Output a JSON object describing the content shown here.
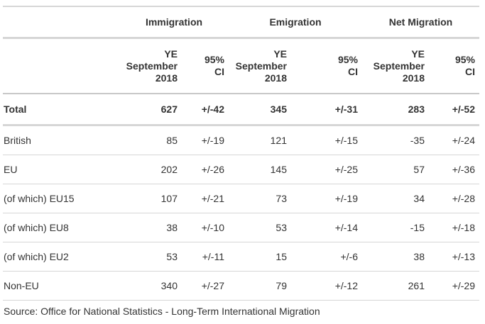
{
  "groups": [
    "Immigration",
    "Emigration",
    "Net Migration"
  ],
  "subheaders": {
    "period_line1": "YE",
    "period_line2": "September",
    "period_line3": "2018",
    "ci_line1": "95%",
    "ci_line2": "CI"
  },
  "rows": [
    {
      "label": "Total",
      "imm": "627",
      "imm_ci": "+/-42",
      "emi": "345",
      "emi_ci": "+/-31",
      "net": "283",
      "net_ci": "+/-52"
    },
    {
      "label": "British",
      "imm": "85",
      "imm_ci": "+/-19",
      "emi": "121",
      "emi_ci": "+/-15",
      "net": "-35",
      "net_ci": "+/-24"
    },
    {
      "label": "EU",
      "imm": "202",
      "imm_ci": "+/-26",
      "emi": "145",
      "emi_ci": "+/-25",
      "net": "57",
      "net_ci": "+/-36"
    },
    {
      "label": "(of which) EU15",
      "imm": "107",
      "imm_ci": "+/-21",
      "emi": "73",
      "emi_ci": "+/-19",
      "net": "34",
      "net_ci": "+/-28"
    },
    {
      "label": "(of which) EU8",
      "imm": "38",
      "imm_ci": "+/-10",
      "emi": "53",
      "emi_ci": "+/-14",
      "net": "-15",
      "net_ci": "+/-18"
    },
    {
      "label": "(of which) EU2",
      "imm": "53",
      "imm_ci": "+/-11",
      "emi": "15",
      "emi_ci": "+/-6",
      "net": "38",
      "net_ci": "+/-13"
    },
    {
      "label": "Non-EU",
      "imm": "340",
      "imm_ci": "+/-27",
      "emi": "79",
      "emi_ci": "+/-12",
      "net": "261",
      "net_ci": "+/-29"
    }
  ],
  "source": "Source: Office for National Statistics - Long-Term International Migration"
}
